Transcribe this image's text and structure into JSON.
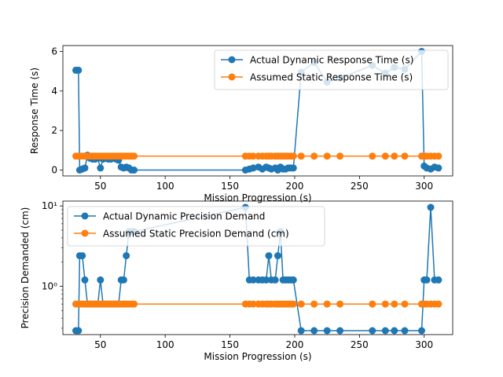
{
  "chart_data": [
    {
      "type": "line",
      "xlabel": "Mission  Progression (s)",
      "ylabel": "Response Time (s)",
      "xlim": [
        21,
        322
      ],
      "ylim": [
        -0.3,
        6.3
      ],
      "xticks": [
        50,
        100,
        150,
        200,
        250,
        300
      ],
      "yticks": [
        0,
        2,
        4,
        6
      ],
      "ylog": false,
      "legend_position": "upper right",
      "series": [
        {
          "name": "Actual Dynamic Response Time (s)",
          "color": "#1f77b4",
          "x": [
            31,
            33,
            34,
            36,
            38,
            40,
            42,
            44,
            46,
            48,
            50,
            52,
            54,
            56,
            58,
            60,
            62,
            64,
            66,
            68,
            70,
            72,
            74,
            76,
            162,
            165,
            168,
            172,
            175,
            178,
            180,
            182,
            185,
            187,
            189,
            191,
            193,
            195,
            197,
            199,
            205,
            215,
            225,
            235,
            260,
            270,
            277,
            285,
            298,
            300,
            302,
            305,
            308,
            311
          ],
          "y": [
            5.05,
            5.05,
            0,
            0.05,
            0.1,
            0.75,
            0.6,
            0.55,
            0.55,
            0.6,
            0.1,
            0.55,
            0.6,
            0.55,
            0.55,
            0.6,
            0.55,
            0.5,
            0.15,
            0.1,
            0.15,
            0.1,
            0,
            0,
            0,
            0.05,
            0.1,
            0.15,
            0.05,
            0.15,
            0.1,
            0.05,
            0.1,
            0.0,
            0.15,
            0.05,
            0.05,
            0.1,
            0.1,
            0.1,
            4.95,
            5.45,
            4.45,
            4.65,
            5.3,
            4.9,
            5.2,
            5.1,
            6.0,
            0.2,
            0.1,
            0.05,
            0.15,
            0.1
          ]
        },
        {
          "name": "Assumed Static Response Time (s)",
          "color": "#ff7f0e",
          "x": [
            31,
            33,
            34,
            36,
            38,
            40,
            42,
            44,
            46,
            48,
            50,
            52,
            54,
            56,
            58,
            60,
            62,
            64,
            66,
            68,
            70,
            72,
            74,
            76,
            162,
            165,
            168,
            172,
            175,
            178,
            180,
            182,
            185,
            187,
            189,
            191,
            193,
            195,
            197,
            199,
            205,
            215,
            225,
            235,
            260,
            270,
            277,
            285,
            298,
            300,
            302,
            305,
            308,
            311
          ],
          "y": [
            0.7,
            0.7,
            0.7,
            0.7,
            0.7,
            0.7,
            0.7,
            0.7,
            0.7,
            0.7,
            0.7,
            0.7,
            0.7,
            0.7,
            0.7,
            0.7,
            0.7,
            0.7,
            0.7,
            0.7,
            0.7,
            0.7,
            0.7,
            0.7,
            0.7,
            0.7,
            0.7,
            0.7,
            0.7,
            0.7,
            0.7,
            0.7,
            0.7,
            0.7,
            0.7,
            0.7,
            0.7,
            0.7,
            0.7,
            0.7,
            0.7,
            0.7,
            0.7,
            0.7,
            0.7,
            0.7,
            0.7,
            0.7,
            0.7,
            0.7,
            0.7,
            0.7,
            0.7,
            0.7
          ]
        }
      ]
    },
    {
      "type": "line",
      "xlabel": "Mission  Progression (s)",
      "ylabel": "Precision Demanded (cm)",
      "xlim": [
        21,
        322
      ],
      "ylim": [
        0.25,
        11.5
      ],
      "ylog": true,
      "xticks": [
        50,
        100,
        150,
        200,
        250,
        300
      ],
      "yticks": [
        1,
        10
      ],
      "ytick_labels": [
        "10⁰",
        "10¹"
      ],
      "legend_position": "upper left",
      "series": [
        {
          "name": "Actual Dynamic Precision Demand",
          "color": "#1f77b4",
          "x": [
            31,
            33,
            34,
            36,
            38,
            40,
            42,
            44,
            46,
            48,
            50,
            52,
            54,
            56,
            58,
            60,
            62,
            64,
            66,
            68,
            70,
            72,
            74,
            76,
            162,
            165,
            168,
            172,
            175,
            178,
            180,
            182,
            185,
            187,
            189,
            191,
            193,
            195,
            197,
            199,
            205,
            215,
            225,
            235,
            260,
            270,
            277,
            285,
            298,
            300,
            302,
            305,
            308,
            311
          ],
          "y": [
            0.28,
            0.28,
            2.4,
            2.4,
            1.2,
            0.6,
            0.6,
            0.6,
            0.6,
            0.6,
            1.2,
            0.6,
            0.6,
            0.6,
            0.6,
            0.6,
            0.6,
            0.6,
            1.2,
            1.2,
            2.4,
            4.8,
            4.8,
            4.8,
            9.6,
            1.2,
            1.2,
            1.2,
            1.2,
            1.2,
            2.4,
            1.2,
            1.2,
            2.4,
            4.8,
            1.2,
            1.2,
            1.2,
            1.2,
            1.2,
            0.28,
            0.28,
            0.28,
            0.28,
            0.28,
            0.28,
            0.28,
            0.28,
            0.28,
            1.2,
            1.2,
            9.6,
            1.2,
            1.2
          ]
        },
        {
          "name": "Assumed Static Precision Demand (cm)",
          "color": "#ff7f0e",
          "x": [
            31,
            33,
            34,
            36,
            38,
            40,
            42,
            44,
            46,
            48,
            50,
            52,
            54,
            56,
            58,
            60,
            62,
            64,
            66,
            68,
            70,
            72,
            74,
            76,
            162,
            165,
            168,
            172,
            175,
            178,
            180,
            182,
            185,
            187,
            189,
            191,
            193,
            195,
            197,
            199,
            205,
            215,
            225,
            235,
            260,
            270,
            277,
            285,
            298,
            300,
            302,
            305,
            308,
            311
          ],
          "y": [
            0.6,
            0.6,
            0.6,
            0.6,
            0.6,
            0.6,
            0.6,
            0.6,
            0.6,
            0.6,
            0.6,
            0.6,
            0.6,
            0.6,
            0.6,
            0.6,
            0.6,
            0.6,
            0.6,
            0.6,
            0.6,
            0.6,
            0.6,
            0.6,
            0.6,
            0.6,
            0.6,
            0.6,
            0.6,
            0.6,
            0.6,
            0.6,
            0.6,
            0.6,
            0.6,
            0.6,
            0.6,
            0.6,
            0.6,
            0.6,
            0.6,
            0.6,
            0.6,
            0.6,
            0.6,
            0.6,
            0.6,
            0.6,
            0.6,
            0.6,
            0.6,
            0.6,
            0.6,
            0.6
          ]
        }
      ]
    }
  ]
}
